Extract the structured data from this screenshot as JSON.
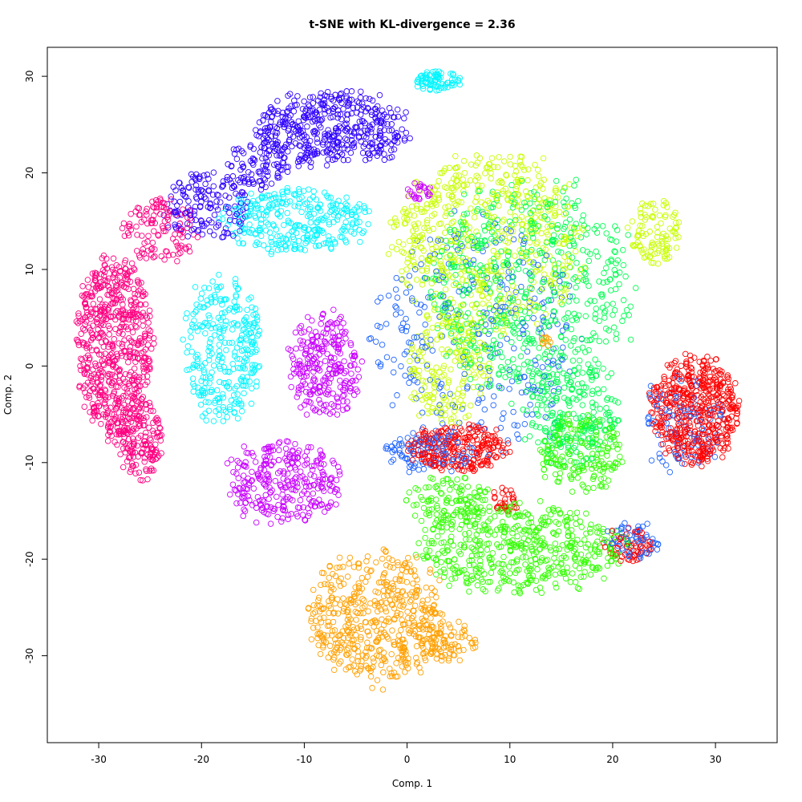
{
  "chart_data": {
    "type": "scatter",
    "title": "t-SNE with KL-divergence = 2.36",
    "xlabel": "Comp. 1",
    "ylabel": "Comp. 2",
    "xlim": [
      -35,
      36
    ],
    "ylim": [
      -39,
      33
    ],
    "xticks": [
      -30,
      -20,
      -10,
      0,
      10,
      20,
      30
    ],
    "yticks": [
      -30,
      -20,
      -10,
      0,
      10,
      20,
      30
    ],
    "grid": false,
    "marker": "open-circle",
    "legend": "none",
    "series": [
      {
        "color": "#FF0080",
        "clusters": [
          {
            "cx": -28.5,
            "cy": 2,
            "rx": 3.6,
            "ry": 9,
            "n": 600
          },
          {
            "cx": -26,
            "cy": -7.5,
            "rx": 2.2,
            "ry": 4.3,
            "n": 180
          },
          {
            "cx": -24,
            "cy": 14,
            "rx": 3.5,
            "ry": 3.2,
            "n": 120
          }
        ]
      },
      {
        "color": "#2E00FF",
        "clusters": [
          {
            "cx": -7.5,
            "cy": 24.5,
            "rx": 7.5,
            "ry": 3.8,
            "n": 450
          },
          {
            "cx": -19.5,
            "cy": 16.5,
            "rx": 4.2,
            "ry": 3.3,
            "n": 160
          },
          {
            "cx": -14.5,
            "cy": 21,
            "rx": 3,
            "ry": 2.5,
            "n": 90
          }
        ]
      },
      {
        "color": "#00F5FF",
        "clusters": [
          {
            "cx": -11,
            "cy": 15,
            "rx": 7,
            "ry": 3.2,
            "n": 300
          },
          {
            "cx": -18,
            "cy": 1.5,
            "rx": 3.8,
            "ry": 7.5,
            "n": 300
          },
          {
            "cx": 3,
            "cy": 29.5,
            "rx": 2.2,
            "ry": 1.0,
            "n": 80
          }
        ]
      },
      {
        "color": "#C800FF",
        "clusters": [
          {
            "cx": -8,
            "cy": 0,
            "rx": 3.3,
            "ry": 5.3,
            "n": 260
          },
          {
            "cx": -12,
            "cy": -12,
            "rx": 5.6,
            "ry": 4.3,
            "n": 300
          },
          {
            "cx": 1.2,
            "cy": 18.2,
            "rx": 1.2,
            "ry": 1.0,
            "n": 25
          }
        ]
      },
      {
        "color": "#FFA000",
        "clusters": [
          {
            "cx": -3,
            "cy": -26,
            "rx": 6.5,
            "ry": 6.8,
            "n": 500
          },
          {
            "cx": 4,
            "cy": -28.5,
            "rx": 2.8,
            "ry": 2,
            "n": 80
          },
          {
            "cx": 13.5,
            "cy": 2.5,
            "rx": 0.7,
            "ry": 0.6,
            "n": 10
          }
        ]
      },
      {
        "color": "#C8FF00",
        "clusters": [
          {
            "cx": 8,
            "cy": 13,
            "rx": 9,
            "ry": 9,
            "n": 600
          },
          {
            "cx": 24,
            "cy": 14,
            "rx": 2.5,
            "ry": 3.5,
            "n": 100
          },
          {
            "cx": 4,
            "cy": 0,
            "rx": 4,
            "ry": 6,
            "n": 200
          }
        ]
      },
      {
        "color": "#00FF50",
        "clusters": [
          {
            "cx": 12,
            "cy": 8,
            "rx": 10,
            "ry": 11,
            "n": 600
          },
          {
            "cx": 16,
            "cy": -5,
            "rx": 4.5,
            "ry": 5,
            "n": 220
          }
        ]
      },
      {
        "color": "#32FF00",
        "clusters": [
          {
            "cx": 11,
            "cy": -19,
            "rx": 10,
            "ry": 4.5,
            "n": 500
          },
          {
            "cx": 17,
            "cy": -9,
            "rx": 4,
            "ry": 4,
            "n": 180
          },
          {
            "cx": 4,
            "cy": -14,
            "rx": 4,
            "ry": 2.5,
            "n": 120
          }
        ]
      },
      {
        "color": "#FF0000",
        "clusters": [
          {
            "cx": 28,
            "cy": -4.5,
            "rx": 4.2,
            "ry": 5.4,
            "n": 500
          },
          {
            "cx": 5,
            "cy": -8.5,
            "rx": 4.8,
            "ry": 2.4,
            "n": 250
          },
          {
            "cx": 21.5,
            "cy": -18.5,
            "rx": 2.5,
            "ry": 1.8,
            "n": 60
          },
          {
            "cx": 9.5,
            "cy": -14,
            "rx": 1.2,
            "ry": 1.5,
            "n": 30
          }
        ]
      },
      {
        "color": "#1E64FF",
        "clusters": [
          {
            "cx": 7,
            "cy": 3,
            "rx": 10,
            "ry": 12,
            "n": 300
          },
          {
            "cx": 27,
            "cy": -6,
            "rx": 4,
            "ry": 5,
            "n": 100
          },
          {
            "cx": 2,
            "cy": -9,
            "rx": 4.5,
            "ry": 2,
            "n": 100
          },
          {
            "cx": 22,
            "cy": -18,
            "rx": 2.5,
            "ry": 2,
            "n": 60
          }
        ]
      }
    ]
  }
}
